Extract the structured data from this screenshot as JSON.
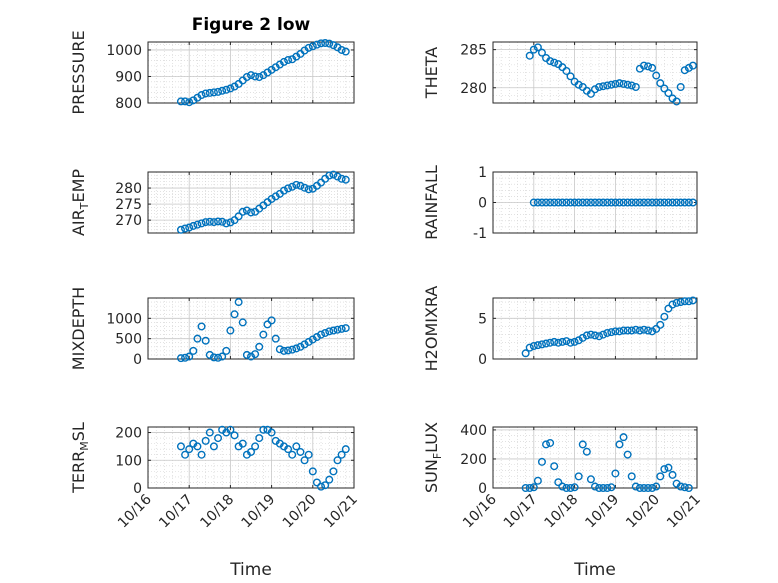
{
  "figure": {
    "title": "Figure 2 low",
    "xlabel": "Time",
    "marker_color": "#0072BD",
    "axis_color": "#262626",
    "grid_color": "#d0d0d0"
  },
  "chart_data": [
    {
      "type": "scatter",
      "title": "Figure 2 low",
      "ylabel": "PRESSURE",
      "ylabel_sub": "",
      "xlim": [
        16,
        21
      ],
      "ylim": [
        800,
        1030
      ],
      "yticks": [
        800,
        900,
        1000
      ],
      "yticklabels": [
        "800",
        "900",
        "1000"
      ],
      "xticks": [
        16,
        17,
        18,
        19,
        20,
        21
      ],
      "xticklabels": [],
      "grid": true,
      "x": [
        16.8,
        16.9,
        17.0,
        17.1,
        17.2,
        17.3,
        17.4,
        17.5,
        17.6,
        17.7,
        17.8,
        17.9,
        18.0,
        18.1,
        18.2,
        18.3,
        18.4,
        18.5,
        18.6,
        18.7,
        18.8,
        18.9,
        19.0,
        19.1,
        19.2,
        19.3,
        19.4,
        19.5,
        19.6,
        19.7,
        19.8,
        19.9,
        20.0,
        20.1,
        20.2,
        20.3,
        20.4,
        20.5,
        20.6,
        20.7,
        20.8
      ],
      "y": [
        806,
        806,
        803,
        810,
        820,
        830,
        836,
        838,
        840,
        842,
        846,
        850,
        855,
        862,
        872,
        885,
        898,
        905,
        900,
        898,
        905,
        915,
        925,
        935,
        945,
        955,
        962,
        965,
        975,
        985,
        998,
        1008,
        1014,
        1020,
        1025,
        1026,
        1024,
        1018,
        1010,
        1000,
        994
      ]
    },
    {
      "type": "scatter",
      "title": "",
      "ylabel": "THETA",
      "ylabel_sub": "",
      "xlim": [
        16,
        21
      ],
      "ylim": [
        278,
        286
      ],
      "yticks": [
        280,
        285
      ],
      "yticklabels": [
        "280",
        "285"
      ],
      "xticks": [
        16,
        17,
        18,
        19,
        20,
        21
      ],
      "xticklabels": [],
      "grid": true,
      "x": [
        16.9,
        17.0,
        17.1,
        17.2,
        17.3,
        17.4,
        17.5,
        17.6,
        17.7,
        17.8,
        17.9,
        18.0,
        18.1,
        18.2,
        18.3,
        18.4,
        18.5,
        18.6,
        18.7,
        18.8,
        18.9,
        19.0,
        19.1,
        19.2,
        19.3,
        19.4,
        19.5,
        19.6,
        19.7,
        19.8,
        19.9,
        20.0,
        20.1,
        20.2,
        20.3,
        20.4,
        20.5,
        20.6,
        20.7,
        20.8,
        20.9
      ],
      "y": [
        284.2,
        285.0,
        285.3,
        284.6,
        283.9,
        283.5,
        283.3,
        283.1,
        282.7,
        282.2,
        281.5,
        280.8,
        280.4,
        280.1,
        279.6,
        279.2,
        279.8,
        280.1,
        280.2,
        280.3,
        280.4,
        280.5,
        280.6,
        280.5,
        280.4,
        280.3,
        280.1,
        282.5,
        282.9,
        282.8,
        282.6,
        281.6,
        280.6,
        279.9,
        279.3,
        278.6,
        278.2,
        280.1,
        282.3,
        282.6,
        282.9
      ]
    },
    {
      "type": "scatter",
      "title": "",
      "ylabel": "AIR",
      "ylabel_sub": "T",
      "ylabel_tail": "EMP",
      "xlim": [
        16,
        21
      ],
      "ylim": [
        266,
        285
      ],
      "yticks": [
        270,
        275,
        280
      ],
      "yticklabels": [
        "270",
        "275",
        "280"
      ],
      "xticks": [
        16,
        17,
        18,
        19,
        20,
        21
      ],
      "xticklabels": [],
      "grid": true,
      "x": [
        16.8,
        16.9,
        17.0,
        17.1,
        17.2,
        17.3,
        17.4,
        17.5,
        17.6,
        17.7,
        17.8,
        17.9,
        18.0,
        18.1,
        18.2,
        18.3,
        18.4,
        18.5,
        18.6,
        18.7,
        18.8,
        18.9,
        19.0,
        19.1,
        19.2,
        19.3,
        19.4,
        19.5,
        19.6,
        19.7,
        19.8,
        19.9,
        20.0,
        20.1,
        20.2,
        20.3,
        20.4,
        20.5,
        20.6,
        20.7,
        20.8
      ],
      "y": [
        267.0,
        267.4,
        267.7,
        268.2,
        268.6,
        269.0,
        269.4,
        269.5,
        269.4,
        269.6,
        269.5,
        269.0,
        269.3,
        270.0,
        271.2,
        272.6,
        273.0,
        272.4,
        272.6,
        273.6,
        274.6,
        275.6,
        276.6,
        277.4,
        278.2,
        279.2,
        279.9,
        280.4,
        281.0,
        280.7,
        280.1,
        279.6,
        279.8,
        280.7,
        281.7,
        282.9,
        283.9,
        284.2,
        283.6,
        282.9,
        282.6
      ]
    },
    {
      "type": "scatter",
      "title": "",
      "ylabel": "RAINFALL",
      "ylabel_sub": "",
      "xlim": [
        16,
        21
      ],
      "ylim": [
        -1,
        1
      ],
      "yticks": [
        -1,
        0,
        1
      ],
      "yticklabels": [
        "-1",
        "0",
        "1"
      ],
      "xticks": [
        16,
        17,
        18,
        19,
        20,
        21
      ],
      "xticklabels": [],
      "grid": true,
      "x": [
        17.0,
        17.1,
        17.2,
        17.3,
        17.4,
        17.5,
        17.6,
        17.7,
        17.8,
        17.9,
        18.0,
        18.1,
        18.2,
        18.3,
        18.4,
        18.5,
        18.6,
        18.7,
        18.8,
        18.9,
        19.0,
        19.1,
        19.2,
        19.3,
        19.4,
        19.5,
        19.6,
        19.7,
        19.8,
        19.9,
        20.0,
        20.1,
        20.2,
        20.3,
        20.4,
        20.5,
        20.6,
        20.7,
        20.8,
        20.9
      ],
      "y": [
        0,
        0,
        0,
        0,
        0,
        0,
        0,
        0,
        0,
        0,
        0,
        0,
        0,
        0,
        0,
        0,
        0,
        0,
        0,
        0,
        0,
        0,
        0,
        0,
        0,
        0,
        0,
        0,
        0,
        0,
        0,
        0,
        0,
        0,
        0,
        0,
        0,
        0,
        0,
        0
      ]
    },
    {
      "type": "scatter",
      "title": "",
      "ylabel": "MIXDEPTH",
      "ylabel_sub": "",
      "xlim": [
        16,
        21
      ],
      "ylim": [
        0,
        1500
      ],
      "yticks": [
        0,
        500,
        1000
      ],
      "yticklabels": [
        "0",
        "500",
        "1000"
      ],
      "xticks": [
        16,
        17,
        18,
        19,
        20,
        21
      ],
      "xticklabels": [],
      "grid": true,
      "x": [
        16.8,
        16.9,
        17.0,
        17.1,
        17.2,
        17.3,
        17.4,
        17.5,
        17.6,
        17.7,
        17.8,
        17.9,
        18.0,
        18.1,
        18.2,
        18.3,
        18.4,
        18.5,
        18.6,
        18.7,
        18.8,
        18.9,
        19.0,
        19.1,
        19.2,
        19.3,
        19.4,
        19.5,
        19.6,
        19.7,
        19.8,
        19.9,
        20.0,
        20.1,
        20.2,
        20.3,
        20.4,
        20.5,
        20.6,
        20.7,
        20.8
      ],
      "y": [
        20,
        30,
        60,
        200,
        500,
        800,
        450,
        100,
        40,
        30,
        60,
        200,
        700,
        1100,
        1400,
        900,
        100,
        60,
        120,
        300,
        600,
        850,
        950,
        500,
        240,
        200,
        210,
        230,
        260,
        300,
        360,
        420,
        480,
        540,
        600,
        640,
        680,
        700,
        720,
        740,
        760
      ]
    },
    {
      "type": "scatter",
      "title": "",
      "ylabel": "H2OMIXRA",
      "ylabel_sub": "",
      "xlim": [
        16,
        21
      ],
      "ylim": [
        0,
        7.5
      ],
      "yticks": [
        0,
        5
      ],
      "yticklabels": [
        "0",
        "5"
      ],
      "xticks": [
        16,
        17,
        18,
        19,
        20,
        21
      ],
      "xticklabels": [],
      "grid": true,
      "x": [
        16.8,
        16.9,
        17.0,
        17.1,
        17.2,
        17.3,
        17.4,
        17.5,
        17.6,
        17.7,
        17.8,
        17.9,
        18.0,
        18.1,
        18.2,
        18.3,
        18.4,
        18.5,
        18.6,
        18.7,
        18.8,
        18.9,
        19.0,
        19.1,
        19.2,
        19.3,
        19.4,
        19.5,
        19.6,
        19.7,
        19.8,
        19.9,
        20.0,
        20.1,
        20.2,
        20.3,
        20.4,
        20.5,
        20.6,
        20.7,
        20.8,
        20.9
      ],
      "y": [
        0.7,
        1.4,
        1.6,
        1.7,
        1.8,
        1.9,
        2.0,
        2.1,
        2.0,
        2.1,
        2.2,
        2.0,
        2.1,
        2.3,
        2.6,
        2.9,
        3.0,
        2.9,
        2.8,
        3.0,
        3.2,
        3.3,
        3.4,
        3.4,
        3.5,
        3.5,
        3.5,
        3.6,
        3.5,
        3.6,
        3.5,
        3.4,
        3.7,
        4.2,
        5.2,
        6.2,
        6.7,
        6.9,
        7.0,
        7.1,
        7.1,
        7.2
      ]
    },
    {
      "type": "scatter",
      "title": "",
      "ylabel": "TERR",
      "ylabel_sub": "M",
      "ylabel_tail": "SL",
      "xlim": [
        16,
        21
      ],
      "ylim": [
        0,
        220
      ],
      "yticks": [
        0,
        100,
        200
      ],
      "yticklabels": [
        "0",
        "100",
        "200"
      ],
      "xticks": [
        16,
        17,
        18,
        19,
        20,
        21
      ],
      "xticklabels": [
        "10/16",
        "10/17",
        "10/18",
        "10/19",
        "10/20",
        "10/21"
      ],
      "grid": true,
      "x": [
        16.8,
        16.9,
        17.0,
        17.1,
        17.2,
        17.3,
        17.4,
        17.5,
        17.6,
        17.7,
        17.8,
        17.9,
        18.0,
        18.1,
        18.2,
        18.3,
        18.4,
        18.5,
        18.6,
        18.7,
        18.8,
        18.9,
        19.0,
        19.1,
        19.2,
        19.3,
        19.4,
        19.5,
        19.6,
        19.7,
        19.8,
        19.9,
        20.0,
        20.1,
        20.2,
        20.3,
        20.4,
        20.5,
        20.6,
        20.7,
        20.8
      ],
      "y": [
        150,
        120,
        140,
        160,
        150,
        120,
        170,
        200,
        150,
        180,
        210,
        200,
        210,
        190,
        150,
        160,
        120,
        130,
        150,
        180,
        210,
        210,
        200,
        170,
        160,
        150,
        140,
        120,
        150,
        130,
        100,
        120,
        60,
        20,
        5,
        10,
        30,
        60,
        100,
        120,
        140
      ]
    },
    {
      "type": "scatter",
      "title": "",
      "ylabel": "SUN",
      "ylabel_sub": "F",
      "ylabel_tail": "LUX",
      "xlim": [
        16,
        21
      ],
      "ylim": [
        0,
        420
      ],
      "yticks": [
        0,
        200,
        400
      ],
      "yticklabels": [
        "0",
        "200",
        "400"
      ],
      "xticks": [
        16,
        17,
        18,
        19,
        20,
        21
      ],
      "xticklabels": [
        "10/16",
        "10/17",
        "10/18",
        "10/19",
        "10/20",
        "10/21"
      ],
      "grid": true,
      "x": [
        16.8,
        16.9,
        17.0,
        17.1,
        17.2,
        17.3,
        17.4,
        17.5,
        17.6,
        17.7,
        17.8,
        17.9,
        18.0,
        18.1,
        18.2,
        18.3,
        18.4,
        18.5,
        18.6,
        18.7,
        18.8,
        18.9,
        19.0,
        19.1,
        19.2,
        19.3,
        19.4,
        19.5,
        19.6,
        19.7,
        19.8,
        19.9,
        20.0,
        20.1,
        20.2,
        20.3,
        20.4,
        20.5,
        20.6,
        20.7,
        20.8
      ],
      "y": [
        0,
        0,
        5,
        50,
        180,
        300,
        310,
        150,
        40,
        10,
        0,
        0,
        5,
        80,
        300,
        250,
        60,
        10,
        0,
        0,
        0,
        5,
        100,
        300,
        350,
        230,
        80,
        10,
        0,
        0,
        0,
        0,
        10,
        80,
        130,
        140,
        90,
        30,
        10,
        5,
        0
      ]
    }
  ]
}
